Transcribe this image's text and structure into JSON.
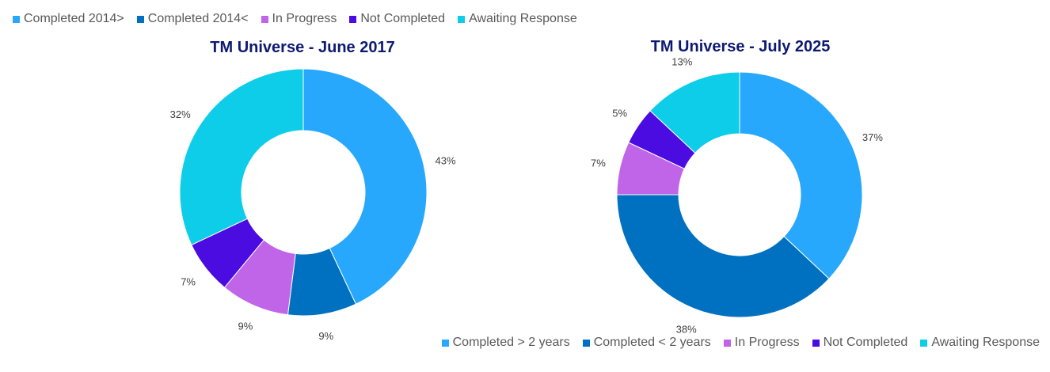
{
  "chart_data": [
    {
      "type": "pie",
      "subtype": "donut",
      "title": "TM Universe - June 2017",
      "legend": {
        "placement": "top-left",
        "labels": [
          "Completed 2014>",
          "Completed 2014<",
          "In Progress",
          "Not Completed",
          "Awaiting Response"
        ]
      },
      "slices": [
        {
          "label": "Completed 2014>",
          "value": 43,
          "value_label": "43%",
          "color": "#27a8fc"
        },
        {
          "label": "Completed 2014<",
          "value": 9,
          "value_label": "9%",
          "color": "#0070c0"
        },
        {
          "label": "In Progress",
          "value": 9,
          "value_label": "9%",
          "color": "#c065e8"
        },
        {
          "label": "Not Completed",
          "value": 7,
          "value_label": "7%",
          "color": "#4a0ce0"
        },
        {
          "label": "Awaiting Response",
          "value": 32,
          "value_label": "32%",
          "color": "#0dcde8"
        }
      ]
    },
    {
      "type": "pie",
      "subtype": "donut",
      "title": "TM Universe - July 2025",
      "legend": {
        "placement": "bottom-right",
        "labels": [
          "Completed > 2 years",
          "Completed < 2 years",
          "In Progress",
          "Not Completed",
          "Awaiting Response"
        ]
      },
      "slices": [
        {
          "label": "Completed > 2 years",
          "value": 37,
          "value_label": "37%",
          "color": "#27a8fc"
        },
        {
          "label": "Completed < 2 years",
          "value": 38,
          "value_label": "38%",
          "color": "#0070c0"
        },
        {
          "label": "In Progress",
          "value": 7,
          "value_label": "7%",
          "color": "#c065e8"
        },
        {
          "label": "Not Completed",
          "value": 5,
          "value_label": "5%",
          "color": "#4a0ce0"
        },
        {
          "label": "Awaiting Response",
          "value": 13,
          "value_label": "13%",
          "color": "#0dcde8"
        }
      ]
    }
  ]
}
